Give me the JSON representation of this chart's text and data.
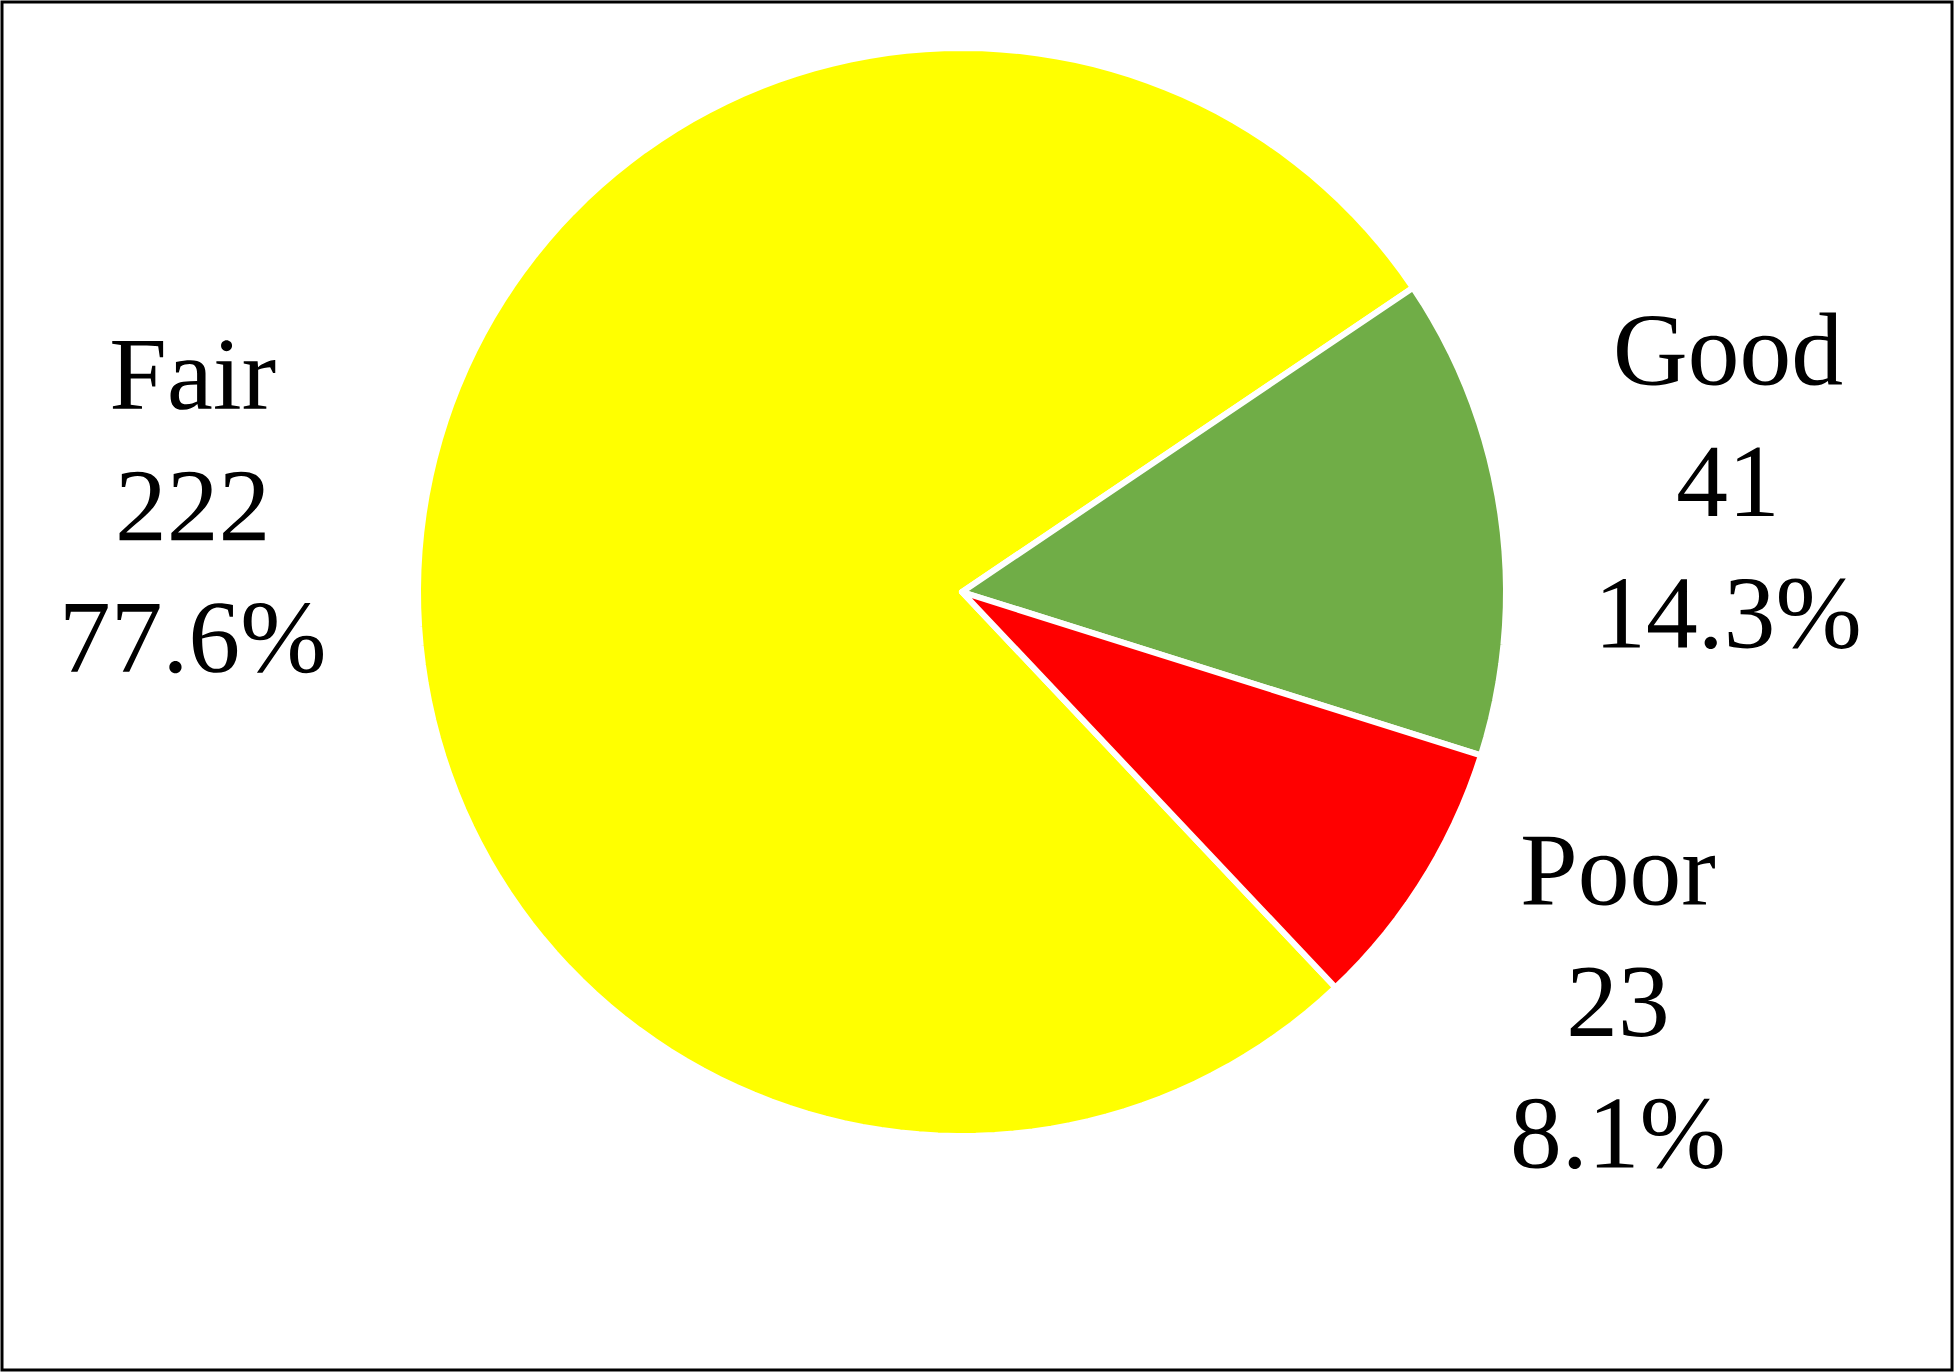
{
  "chart_data": {
    "type": "pie",
    "categories": [
      "Fair",
      "Good",
      "Poor"
    ],
    "values": [
      77.6,
      14.3,
      8.1
    ],
    "colors": [
      "#ffff00",
      "#70ad47",
      "#ff0000"
    ],
    "value_labels": [
      "77.6%",
      "14.3%",
      "8.1%"
    ],
    "annotations": [
      "222",
      "41",
      "23"
    ]
  }
}
